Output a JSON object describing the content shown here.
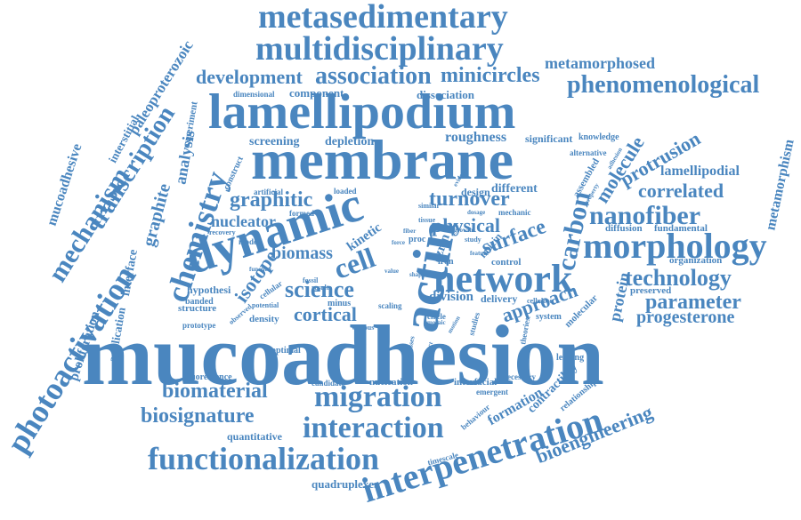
{
  "color": "#4a86bf",
  "words": [
    "mucoadhesion",
    "membrane",
    "lamellipodium",
    "dynamic",
    "actin",
    "network",
    "morphology",
    "metasedimentary",
    "multidisciplinary",
    "interpenetration",
    "functionalization",
    "interaction",
    "migration",
    "mechanism",
    "photoactivation",
    "chemistry",
    "transcription",
    "nanofiber",
    "carbon",
    "science",
    "cell",
    "surface",
    "biomaterial",
    "biosignature",
    "bioengineering",
    "technology",
    "parameter",
    "progesterone",
    "phenomenological",
    "metamorphosed",
    "minicircles",
    "association",
    "development",
    "correlated",
    "protrusion",
    "molecule",
    "graphitic",
    "graphite",
    "turnover",
    "physical",
    "cortical",
    "approach",
    "isotope",
    "biomass",
    "nucleator",
    "analysis",
    "roughness",
    "screening",
    "depletion",
    "dissociation",
    "component",
    "paleoproterozoic",
    "interstitial",
    "mucoadhesive",
    "proliferation",
    "interface",
    "application",
    "hypothesi",
    "structure",
    "fluorescence",
    "quantitative",
    "quadruplexes",
    "nucleation",
    "interfacial",
    "formation",
    "contractility",
    "protein",
    "division",
    "delivery",
    "lamellipodial",
    "metamorphism",
    "organization",
    "preserved",
    "system",
    "molecular",
    "relationship",
    "emergent",
    "candidate",
    "necessary",
    "leading",
    "timescale",
    "behaviour",
    "significant",
    "knowledge",
    "alternative",
    "assembled",
    "diffusion",
    "fundamental",
    "different",
    "design",
    "mechanic",
    "similar",
    "ezrin",
    "kinetic",
    "mucin",
    "control",
    "density",
    "potential",
    "minus",
    "scaling",
    "circle",
    "theories",
    "studies",
    "fossil",
    "result",
    "banded",
    "prototype",
    "optimal",
    "various",
    "model",
    "recovery",
    "artificial",
    "construct",
    "experiment",
    "dimensional",
    "formed",
    "loaded",
    "tissue",
    "dosage",
    "iron",
    "proc",
    "study",
    "feature",
    "cellulose",
    "shape",
    "growth",
    "evidence",
    "property",
    "adhesion",
    "force",
    "fiber",
    "function",
    "observed",
    "cellular",
    "motion",
    "mosaic",
    "distinct",
    "value",
    "processes"
  ]
}
